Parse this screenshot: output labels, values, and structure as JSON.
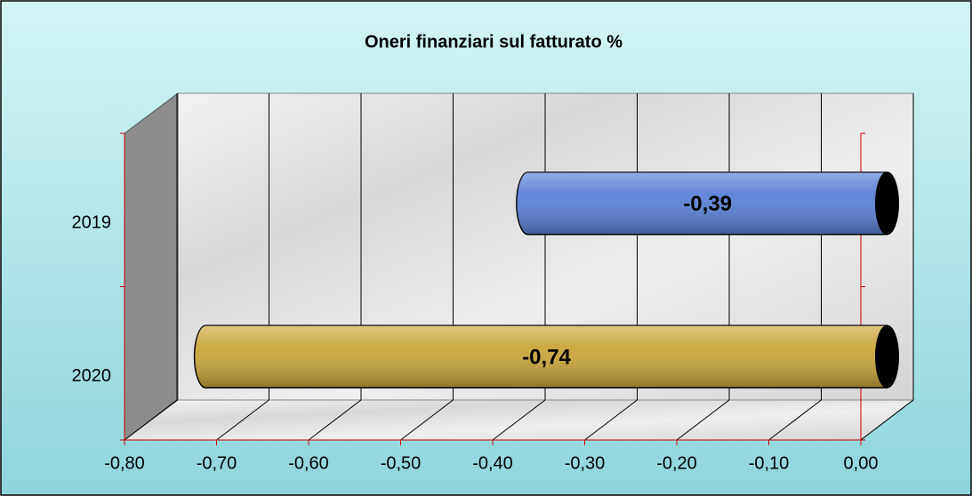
{
  "chart_data": {
    "type": "bar",
    "orientation": "horizontal",
    "title": "Oneri finanziari sul fatturato %",
    "categories": [
      "2019",
      "2020"
    ],
    "values": [
      -0.39,
      -0.74
    ],
    "value_labels": [
      "-0,39",
      "-0,74"
    ],
    "colors": [
      "#5b80d8",
      "#c9a63a"
    ],
    "xlim": [
      -0.8,
      0
    ],
    "xticks": [
      {
        "value": -0.8,
        "label": "-0,80"
      },
      {
        "value": -0.7,
        "label": "-0,70"
      },
      {
        "value": -0.6,
        "label": "-0,60"
      },
      {
        "value": -0.5,
        "label": "-0,50"
      },
      {
        "value": -0.4,
        "label": "-0,40"
      },
      {
        "value": -0.3,
        "label": "-0,30"
      },
      {
        "value": -0.2,
        "label": "-0,20"
      },
      {
        "value": -0.1,
        "label": "-0,10"
      },
      {
        "value": 0,
        "label": "0,00"
      }
    ],
    "grid": true
  }
}
